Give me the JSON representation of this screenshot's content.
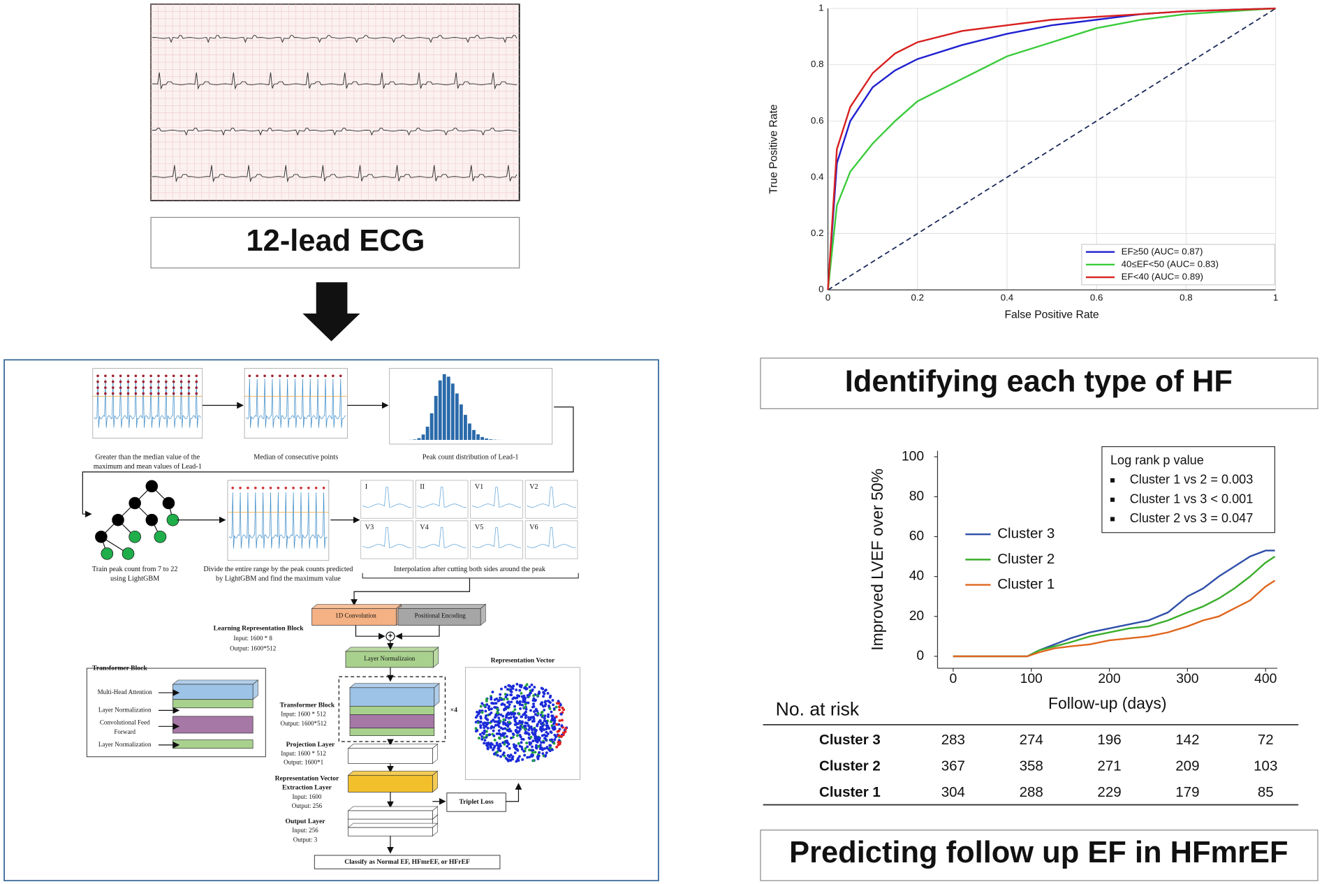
{
  "ecg_panel": {
    "title": "12-lead ECG"
  },
  "pipeline": {
    "captions": {
      "peaks": [
        "Greater than the median value of the",
        "maximum and mean values of Lead-1"
      ],
      "median": "Median of consecutive points",
      "distribution": "Peak count distribution of Lead-1",
      "lightgbm": [
        "Train peak count from 7 to 22",
        "using LightGBM"
      ],
      "divide": [
        "Divide the entire range by the peak counts predicted",
        "by LightGBM and find the maximum value"
      ],
      "interpolation": "Interpolation after cutting both sides around the peak"
    },
    "leads": [
      "I",
      "II",
      "V1",
      "V2",
      "V3",
      "V4",
      "V5",
      "V6"
    ],
    "conv": "1D Convolution",
    "positional": "Positional Encoding",
    "learning_block": [
      "Learning Representation Block",
      "Input: 1600 * 8",
      "Output: 1600*512"
    ],
    "layer_norm": "Layer Normalizaion",
    "transformer_legend": {
      "title": "Transformer Block",
      "items": [
        "Multi-Head Attention",
        "Layer Normalization",
        "Convolutional Feed",
        "Forward",
        "Layer Normalization"
      ]
    },
    "transformer": [
      "Transformer Block",
      "Input: 1600 * 512",
      "Output: 1600*512"
    ],
    "repeat": "×4",
    "projection": [
      "Projection Layer",
      "Input: 1600 * 512",
      "Output: 1600*1"
    ],
    "extraction": [
      "Representation Vector",
      "Extraction Layer",
      "Input: 1600",
      "Output: 256"
    ],
    "output_layer": [
      "Output Layer",
      "Input: 256",
      "Output: 3"
    ],
    "triplet": "Triplet Loss",
    "representation_title": "Representation Vector",
    "classify": "Classify as Normal EF, HFmrEF, or HFrEF"
  },
  "chart_data": [
    {
      "type": "line",
      "xlabel": "False Positive Rate",
      "ylabel": "True Positive Rate",
      "xlim": [
        0,
        1
      ],
      "ylim": [
        0,
        1
      ],
      "xticks": [
        0,
        0.2,
        0.4,
        0.6,
        0.8,
        1
      ],
      "yticks": [
        0,
        0.2,
        0.4,
        0.6,
        0.8,
        1
      ],
      "grid": true,
      "legend": "lower right",
      "x": [
        0,
        0.02,
        0.05,
        0.1,
        0.15,
        0.2,
        0.3,
        0.4,
        0.5,
        0.6,
        0.7,
        0.8,
        0.9,
        1
      ],
      "series": [
        {
          "name": "EF≥50 (AUC= 0.87)",
          "color": "#2020d0",
          "values": [
            0,
            0.45,
            0.6,
            0.72,
            0.78,
            0.82,
            0.87,
            0.91,
            0.94,
            0.96,
            0.98,
            0.99,
            0.995,
            1
          ]
        },
        {
          "name": "40≤EF<50 (AUC= 0.83)",
          "color": "#3ccc3c",
          "values": [
            0,
            0.3,
            0.42,
            0.52,
            0.6,
            0.67,
            0.75,
            0.83,
            0.88,
            0.93,
            0.96,
            0.98,
            0.99,
            1
          ]
        },
        {
          "name": "EF<40 (AUC= 0.89)",
          "color": "#d82020",
          "values": [
            0,
            0.5,
            0.65,
            0.77,
            0.84,
            0.88,
            0.92,
            0.94,
            0.96,
            0.97,
            0.98,
            0.99,
            0.995,
            1
          ]
        }
      ],
      "caption": "Identifying each type of HF"
    },
    {
      "type": "line",
      "xlabel": "Follow-up (days)",
      "ylabel": "Improved LVEF over 50%",
      "xlim": [
        -20,
        415
      ],
      "ylim": [
        -6,
        103
      ],
      "xticks": [
        0,
        100,
        200,
        300,
        400
      ],
      "yticks": [
        0,
        20,
        40,
        60,
        80,
        100
      ],
      "legend": "center left",
      "x": [
        0,
        50,
        95,
        110,
        130,
        150,
        175,
        200,
        225,
        250,
        275,
        300,
        320,
        340,
        360,
        380,
        400,
        412
      ],
      "series": [
        {
          "name": "Cluster 3",
          "color": "#2f4fa8",
          "values": [
            0,
            0,
            0,
            3,
            6,
            9,
            12,
            14,
            16,
            18,
            22,
            30,
            34,
            40,
            45,
            50,
            53,
            53
          ]
        },
        {
          "name": "Cluster 2",
          "color": "#3aae2a",
          "values": [
            0,
            0,
            0,
            3,
            5,
            7,
            10,
            12,
            14,
            15,
            18,
            22,
            25,
            29,
            34,
            40,
            47,
            50
          ]
        },
        {
          "name": "Cluster 1",
          "color": "#e0661e",
          "values": [
            0,
            0,
            0,
            2,
            4,
            5,
            6,
            8,
            9,
            10,
            12,
            15,
            18,
            20,
            24,
            28,
            35,
            38
          ]
        }
      ],
      "annotation": {
        "title": "Log rank p value",
        "items": [
          "Cluster 1 vs 2 = 0.003",
          "Cluster 1 vs 3 < 0.001",
          "Cluster 2 vs 3 = 0.047"
        ]
      },
      "risk_table": {
        "header": "No. at risk",
        "rows": [
          {
            "name": "Cluster 3",
            "values": [
              283,
              274,
              196,
              142,
              72
            ]
          },
          {
            "name": "Cluster 2",
            "values": [
              367,
              358,
              271,
              209,
              103
            ]
          },
          {
            "name": "Cluster 1",
            "values": [
              304,
              288,
              229,
              179,
              85
            ]
          }
        ]
      },
      "caption": "Predicting follow up EF in HFmrEF"
    }
  ]
}
